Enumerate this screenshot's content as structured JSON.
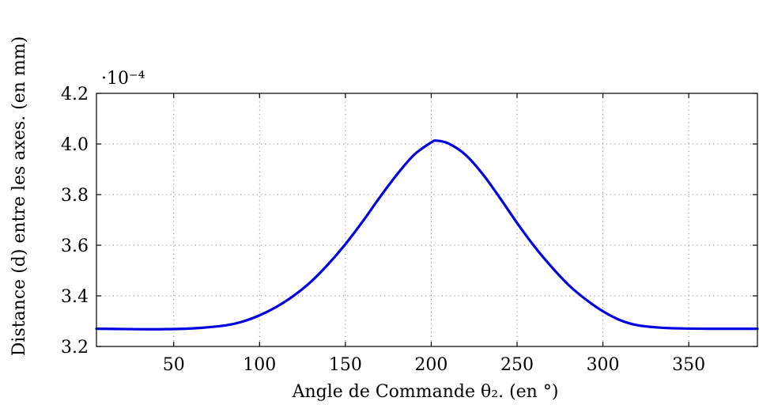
{
  "chart_data": {
    "type": "line",
    "title": "",
    "xlabel": "Angle de Commande θ₂. (en °)",
    "ylabel": "Distance (d) entre les axes. (en mm)",
    "y_scale_label": "·10⁻⁴",
    "xlim": [
      5,
      390
    ],
    "ylim": [
      3.2,
      4.2
    ],
    "xticks": [
      50,
      100,
      150,
      200,
      250,
      300,
      350
    ],
    "xtick_labels": [
      "50",
      "100",
      "150",
      "200",
      "250",
      "300",
      "350"
    ],
    "yticks": [
      3.2,
      3.4,
      3.6,
      3.8,
      4.0,
      4.2
    ],
    "ytick_labels": [
      "3.2",
      "3.4",
      "3.6",
      "3.8",
      "4.0",
      "4.2"
    ],
    "grid": true,
    "series": [
      {
        "color": "#0000e0",
        "x": [
          5,
          20,
          40,
          60,
          80,
          90,
          100,
          110,
          120,
          130,
          140,
          150,
          160,
          170,
          180,
          190,
          200,
          203,
          210,
          220,
          230,
          240,
          250,
          260,
          270,
          280,
          290,
          300,
          310,
          320,
          330,
          340,
          360,
          380,
          390
        ],
        "y": [
          3.27,
          3.269,
          3.268,
          3.271,
          3.283,
          3.298,
          3.323,
          3.357,
          3.401,
          3.456,
          3.525,
          3.604,
          3.693,
          3.789,
          3.879,
          3.957,
          4.006,
          4.013,
          4.002,
          3.957,
          3.881,
          3.787,
          3.688,
          3.596,
          3.515,
          3.443,
          3.386,
          3.339,
          3.304,
          3.284,
          3.276,
          3.272,
          3.27,
          3.27,
          3.27
        ]
      }
    ]
  }
}
